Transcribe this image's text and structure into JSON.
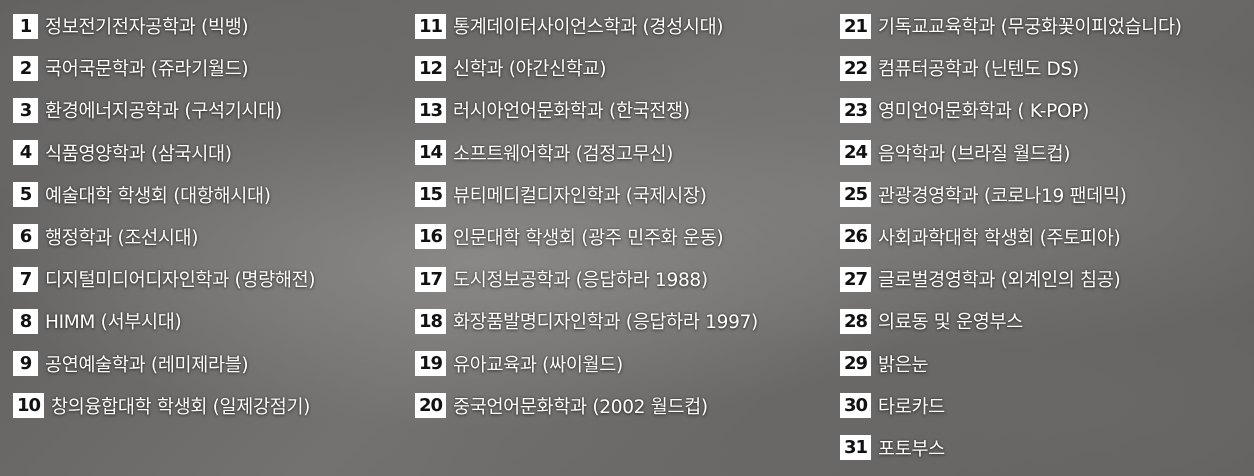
{
  "columns": [
    [
      {
        "num": "1",
        "text": "정보전기전자공학과 (빅뱅)"
      },
      {
        "num": "2",
        "text": "국어국문학과 (쥬라기월드)"
      },
      {
        "num": "3",
        "text": "환경에너지공학과 (구석기시대)"
      },
      {
        "num": "4",
        "text": "식품영양학과 (삼국시대)"
      },
      {
        "num": "5",
        "text": "예술대학 학생회 (대항해시대)"
      },
      {
        "num": "6",
        "text": "행정학과 (조선시대)"
      },
      {
        "num": "7",
        "text": "디지털미디어디자인학과 (명량해전)"
      },
      {
        "num": "8",
        "text": "HIMM (서부시대)"
      },
      {
        "num": "9",
        "text": "공연예술학과 (레미제라블)"
      },
      {
        "num": "10",
        "text": "창의융합대학 학생회 (일제강점기)"
      }
    ],
    [
      {
        "num": "11",
        "text": "통계데이터사이언스학과 (경성시대)"
      },
      {
        "num": "12",
        "text": "신학과 (야간신학교)"
      },
      {
        "num": "13",
        "text": "러시아언어문화학과 (한국전쟁)"
      },
      {
        "num": "14",
        "text": "소프트웨어학과 (검정고무신)"
      },
      {
        "num": "15",
        "text": "뷰티메디컬디자인학과 (국제시장)"
      },
      {
        "num": "16",
        "text": "인문대학 학생회 (광주 민주화 운동)"
      },
      {
        "num": "17",
        "text": "도시정보공학과 (응답하라 1988)"
      },
      {
        "num": "18",
        "text": "화장품발명디자인학과 (응답하라 1997)"
      },
      {
        "num": "19",
        "text": "유아교육과 (싸이월드)"
      },
      {
        "num": "20",
        "text": "중국언어문화학과 (2002 월드컵)"
      }
    ],
    [
      {
        "num": "21",
        "text": "기독교교육학과 (무궁화꽃이피었습니다)"
      },
      {
        "num": "22",
        "text": "컴퓨터공학과 (닌텐도 DS)"
      },
      {
        "num": "23",
        "text": "영미언어문화학과 ( K-POP)"
      },
      {
        "num": "24",
        "text": "음악학과 (브라질 월드컵)"
      },
      {
        "num": "25",
        "text": "관광경영학과 (코로나19 팬데믹)"
      },
      {
        "num": "26",
        "text": "사회과학대학 학생회 (주토피아)"
      },
      {
        "num": "27",
        "text": "글로벌경영학과 (외계인의 침공)"
      },
      {
        "num": "28",
        "text": "의료동 및 운영부스"
      },
      {
        "num": "29",
        "text": "밝은눈"
      },
      {
        "num": "30",
        "text": "타로카드"
      },
      {
        "num": "31",
        "text": "포토부스"
      }
    ]
  ]
}
